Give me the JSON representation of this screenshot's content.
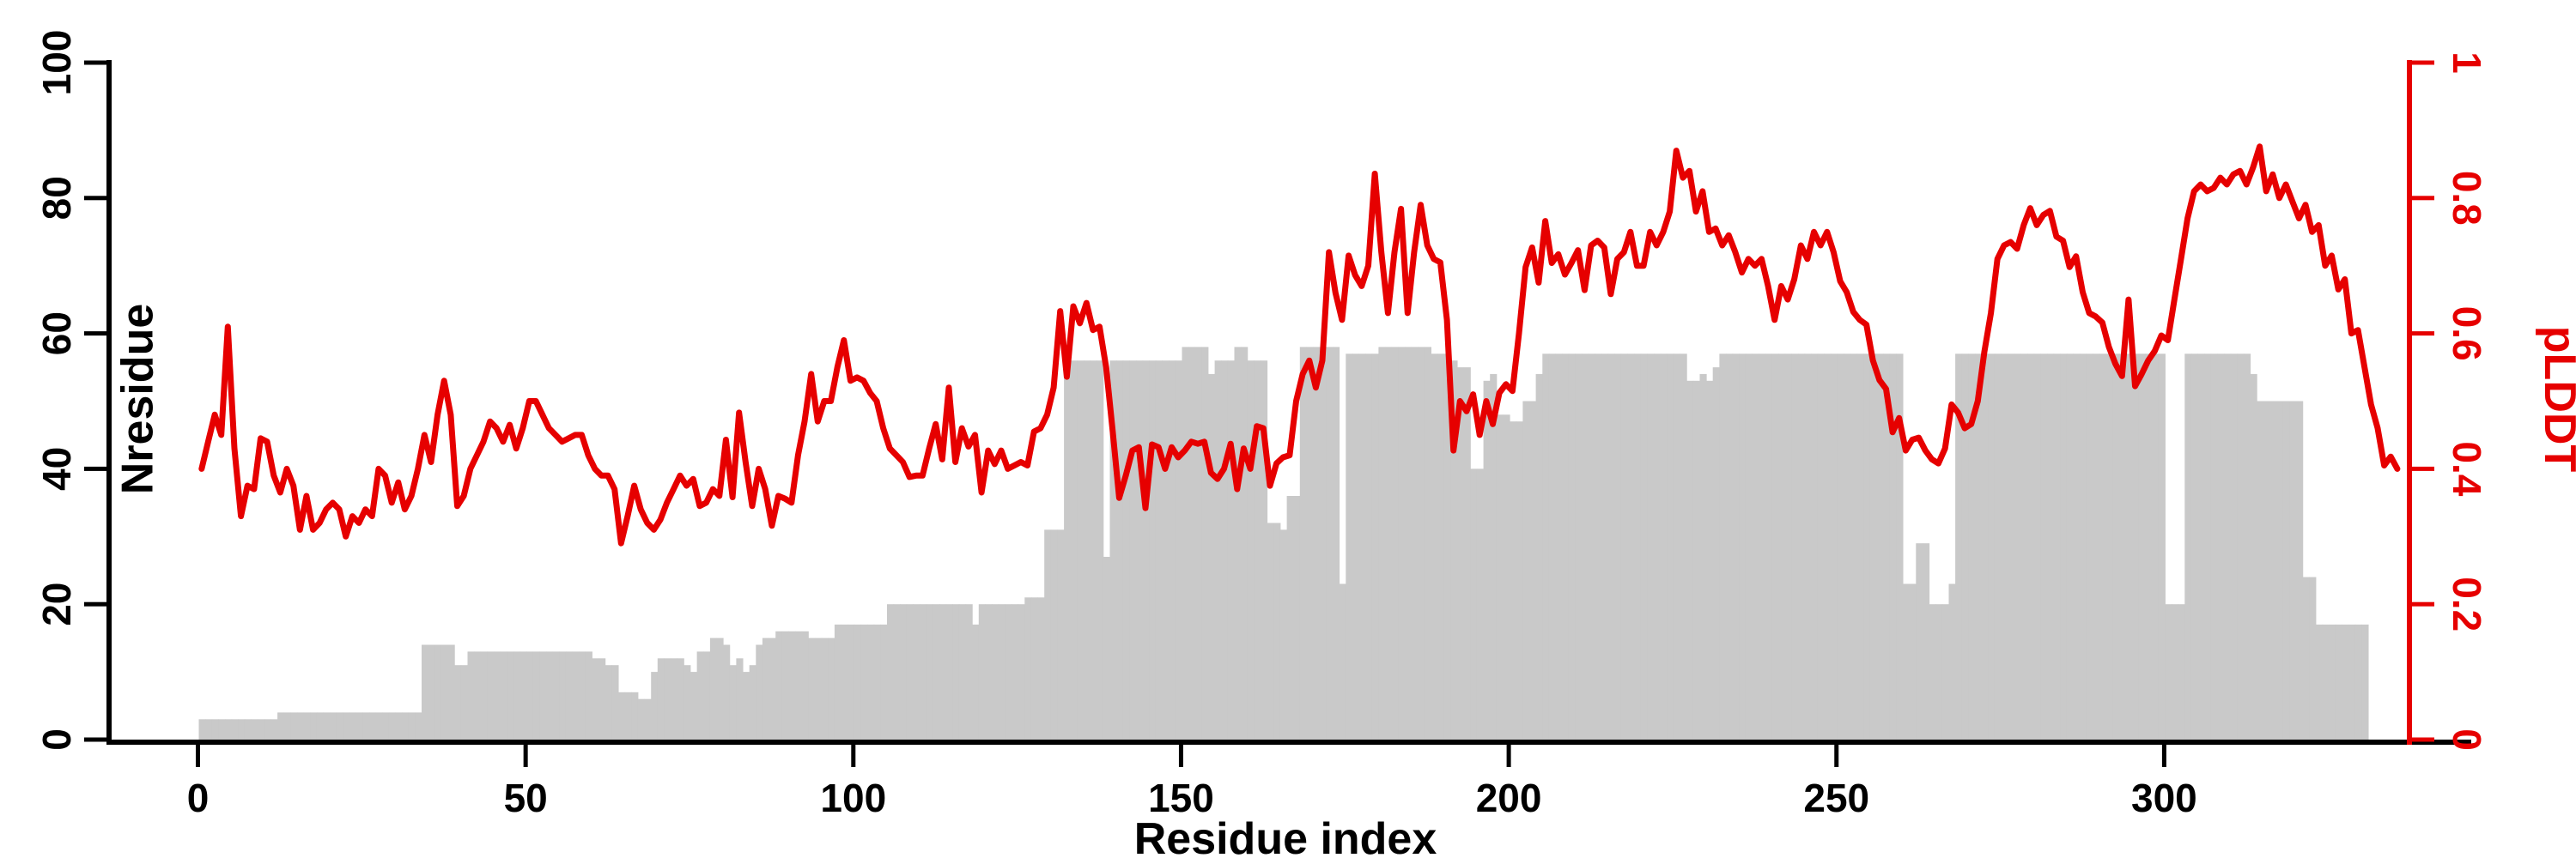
{
  "chart_data": {
    "type": "mixed",
    "title": "",
    "xlabel": "Residue index",
    "ylabel_left": "Nresidue",
    "ylabel_right": "pLDDT",
    "x_ticks": [
      0,
      50,
      100,
      150,
      200,
      250,
      300
    ],
    "x_range": [
      0,
      337
    ],
    "yleft_ticks": [
      0,
      20,
      40,
      60,
      80,
      100
    ],
    "yleft_range": [
      0,
      100
    ],
    "yright_ticks": [
      0,
      0.2,
      0.4,
      0.6,
      0.8,
      1
    ],
    "yright_tick_labels": [
      "0",
      "0.2",
      "0.4",
      "0.6",
      "0.8",
      "1"
    ],
    "yright_range": [
      0,
      1
    ],
    "grid": false,
    "legend": "none",
    "colors": {
      "bar": "#c9c9c9",
      "line": "#e60000",
      "axis": "#000000"
    },
    "series": [
      {
        "name": "Nresidue",
        "type": "bar",
        "axis": "left",
        "x_start": 0,
        "values": [
          3,
          3,
          3,
          3,
          3,
          3,
          3,
          3,
          3,
          3,
          3,
          3,
          4,
          4,
          4,
          4,
          4,
          4,
          4,
          4,
          4,
          4,
          4,
          4,
          4,
          4,
          4,
          4,
          4,
          4,
          4,
          4,
          4,
          4,
          14,
          14,
          14,
          14,
          14,
          11,
          11,
          13,
          13,
          13,
          13,
          13,
          13,
          13,
          13,
          13,
          13,
          13,
          13,
          13,
          13,
          13,
          13,
          13,
          13,
          13,
          12,
          12,
          11,
          11,
          7,
          7,
          7,
          6,
          6,
          10,
          12,
          12,
          12,
          12,
          11,
          10,
          13,
          13,
          15,
          15,
          14,
          11,
          12,
          10,
          11,
          14,
          15,
          15,
          16,
          16,
          16,
          16,
          16,
          15,
          15,
          15,
          15,
          17,
          17,
          17,
          17,
          17,
          17,
          17,
          17,
          20,
          20,
          20,
          20,
          20,
          20,
          20,
          20,
          20,
          20,
          20,
          20,
          20,
          17,
          20,
          20,
          20,
          20,
          20,
          20,
          20,
          21,
          21,
          21,
          31,
          31,
          31,
          56,
          56,
          56,
          56,
          56,
          56,
          27,
          56,
          56,
          56,
          56,
          56,
          56,
          56,
          56,
          56,
          56,
          56,
          58,
          58,
          58,
          58,
          54,
          56,
          56,
          56,
          58,
          58,
          56,
          56,
          56,
          32,
          32,
          31,
          36,
          36,
          58,
          58,
          58,
          58,
          58,
          58,
          23,
          57,
          57,
          57,
          57,
          57,
          58,
          58,
          58,
          58,
          58,
          58,
          58,
          58,
          57,
          57,
          57,
          56,
          55,
          55,
          40,
          40,
          53,
          54,
          48,
          48,
          47,
          47,
          50,
          50,
          54,
          57,
          57,
          57,
          57,
          57,
          57,
          57,
          57,
          57,
          57,
          57,
          57,
          57,
          57,
          57,
          57,
          57,
          57,
          57,
          57,
          57,
          57,
          53,
          53,
          54,
          53,
          55,
          57,
          57,
          57,
          57,
          57,
          57,
          57,
          57,
          57,
          57,
          57,
          57,
          57,
          57,
          57,
          57,
          57,
          57,
          57,
          57,
          57,
          57,
          57,
          57,
          57,
          57,
          57,
          57,
          23,
          23,
          29,
          29,
          20,
          20,
          20,
          23,
          57,
          57,
          57,
          57,
          57,
          57,
          57,
          57,
          57,
          57,
          57,
          57,
          57,
          57,
          57,
          57,
          57,
          57,
          57,
          57,
          57,
          57,
          57,
          57,
          57,
          57,
          57,
          57,
          57,
          57,
          57,
          57,
          20,
          20,
          20,
          57,
          57,
          57,
          57,
          57,
          57,
          57,
          57,
          57,
          57,
          54,
          50,
          50,
          50,
          50,
          50,
          50,
          50,
          24,
          24,
          17,
          17,
          17,
          17,
          17,
          17,
          17,
          17
        ]
      },
      {
        "name": "pLDDT",
        "type": "line",
        "axis": "right",
        "x_start": 0,
        "values": [
          0.4,
          0.44,
          0.48,
          0.45,
          0.61,
          0.43,
          0.33,
          0.375,
          0.37,
          0.445,
          0.44,
          0.39,
          0.365,
          0.4,
          0.375,
          0.31,
          0.36,
          0.31,
          0.32,
          0.34,
          0.35,
          0.34,
          0.3,
          0.33,
          0.32,
          0.34,
          0.33,
          0.4,
          0.39,
          0.35,
          0.38,
          0.34,
          0.36,
          0.4,
          0.45,
          0.41,
          0.48,
          0.53,
          0.48,
          0.345,
          0.36,
          0.4,
          0.42,
          0.44,
          0.47,
          0.46,
          0.44,
          0.465,
          0.43,
          0.46,
          0.5,
          0.5,
          0.48,
          0.46,
          0.45,
          0.44,
          0.445,
          0.45,
          0.45,
          0.42,
          0.4,
          0.39,
          0.39,
          0.37,
          0.29,
          0.33,
          0.375,
          0.34,
          0.32,
          0.31,
          0.325,
          0.35,
          0.37,
          0.39,
          0.375,
          0.385,
          0.345,
          0.35,
          0.37,
          0.36,
          0.443,
          0.358,
          0.483,
          0.41,
          0.345,
          0.4,
          0.37,
          0.316,
          0.36,
          0.356,
          0.35,
          0.42,
          0.47,
          0.54,
          0.47,
          0.5,
          0.5,
          0.55,
          0.59,
          0.53,
          0.535,
          0.53,
          0.512,
          0.5,
          0.46,
          0.43,
          0.42,
          0.41,
          0.388,
          0.39,
          0.39,
          0.43,
          0.466,
          0.414,
          0.52,
          0.41,
          0.46,
          0.433,
          0.45,
          0.365,
          0.427,
          0.407,
          0.427,
          0.4,
          0.405,
          0.41,
          0.405,
          0.455,
          0.46,
          0.48,
          0.52,
          0.633,
          0.536,
          0.64,
          0.615,
          0.645,
          0.605,
          0.61,
          0.55,
          0.456,
          0.357,
          0.39,
          0.427,
          0.432,
          0.342,
          0.436,
          0.432,
          0.4,
          0.432,
          0.417,
          0.427,
          0.44,
          0.437,
          0.44,
          0.394,
          0.385,
          0.4,
          0.437,
          0.37,
          0.43,
          0.4,
          0.463,
          0.46,
          0.375,
          0.408,
          0.417,
          0.42,
          0.5,
          0.54,
          0.56,
          0.52,
          0.56,
          0.72,
          0.66,
          0.62,
          0.715,
          0.686,
          0.67,
          0.7,
          0.836,
          0.72,
          0.63,
          0.72,
          0.784,
          0.63,
          0.72,
          0.79,
          0.73,
          0.71,
          0.705,
          0.62,
          0.427,
          0.5,
          0.485,
          0.51,
          0.45,
          0.5,
          0.466,
          0.512,
          0.525,
          0.515,
          0.6,
          0.698,
          0.727,
          0.675,
          0.766,
          0.704,
          0.717,
          0.687,
          0.704,
          0.723,
          0.664,
          0.73,
          0.737,
          0.727,
          0.658,
          0.71,
          0.72,
          0.75,
          0.7,
          0.7,
          0.75,
          0.73,
          0.75,
          0.78,
          0.87,
          0.83,
          0.84,
          0.78,
          0.81,
          0.75,
          0.755,
          0.73,
          0.745,
          0.72,
          0.69,
          0.71,
          0.7,
          0.71,
          0.67,
          0.62,
          0.67,
          0.65,
          0.68,
          0.73,
          0.71,
          0.75,
          0.73,
          0.75,
          0.72,
          0.677,
          0.661,
          0.632,
          0.62,
          0.613,
          0.56,
          0.531,
          0.518,
          0.454,
          0.475,
          0.427,
          0.443,
          0.446,
          0.427,
          0.414,
          0.408,
          0.43,
          0.495,
          0.483,
          0.46,
          0.466,
          0.5,
          0.573,
          0.63,
          0.71,
          0.73,
          0.735,
          0.725,
          0.76,
          0.785,
          0.76,
          0.775,
          0.781,
          0.743,
          0.737,
          0.698,
          0.714,
          0.661,
          0.63,
          0.625,
          0.616,
          0.58,
          0.555,
          0.537,
          0.65,
          0.522,
          0.54,
          0.56,
          0.574,
          0.597,
          0.59,
          0.65,
          0.71,
          0.77,
          0.81,
          0.82,
          0.81,
          0.815,
          0.83,
          0.82,
          0.835,
          0.84,
          0.82,
          0.845,
          0.876,
          0.81,
          0.835,
          0.8,
          0.82,
          0.795,
          0.77,
          0.79,
          0.75,
          0.76,
          0.7,
          0.715,
          0.665,
          0.68,
          0.6,
          0.605,
          0.55,
          0.495,
          0.46,
          0.405,
          0.418,
          0.4
        ]
      }
    ]
  },
  "labels": {
    "xlabel": "Residue index",
    "ylabel_left": "Nresidue",
    "ylabel_right": "pLDDT"
  }
}
